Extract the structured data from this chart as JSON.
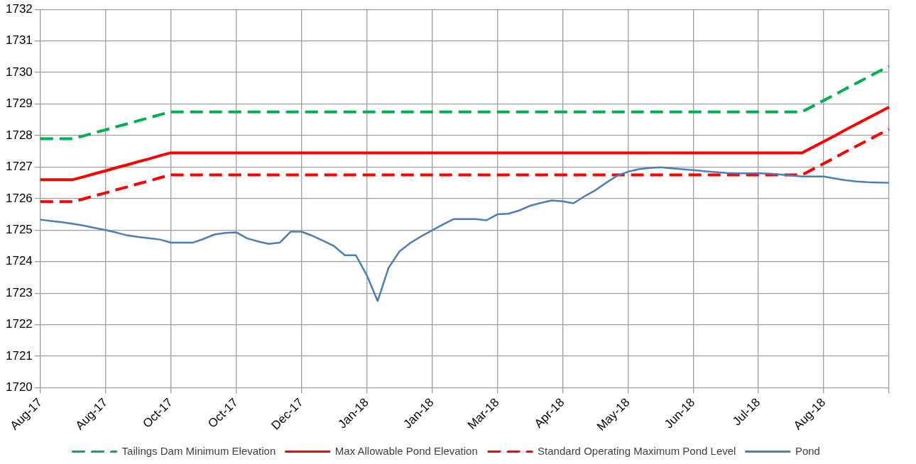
{
  "chart_data": {
    "type": "line",
    "ylim": [
      1720,
      1732
    ],
    "categories": [
      "Aug-17",
      null,
      null,
      null,
      null,
      null,
      "Aug-17",
      null,
      null,
      null,
      null,
      null,
      "Oct-17",
      null,
      null,
      null,
      null,
      null,
      "Oct-17",
      null,
      null,
      null,
      null,
      null,
      "Dec-17",
      null,
      null,
      null,
      null,
      null,
      "Jan-18",
      null,
      null,
      null,
      null,
      null,
      "Jan-18",
      null,
      null,
      null,
      null,
      null,
      "Mar-18",
      null,
      null,
      null,
      null,
      null,
      "Apr-18",
      null,
      null,
      null,
      null,
      null,
      "May-18",
      null,
      null,
      null,
      null,
      null,
      "Jun-18",
      null,
      null,
      null,
      null,
      null,
      "Jul-18",
      null,
      null,
      null,
      null,
      null,
      "Aug-18",
      null,
      null,
      null,
      null,
      null,
      null
    ],
    "yticks": [
      1720,
      1721,
      1722,
      1723,
      1724,
      1725,
      1726,
      1727,
      1728,
      1729,
      1730,
      1731,
      1732
    ],
    "grid": true,
    "legend": "bottom",
    "marker": "none",
    "series": [
      {
        "name": "Tailings Dam Minimum Elevation",
        "color": "#00b050",
        "line_style": "dashed",
        "values": [
          1727.9,
          1727.9,
          1727.9,
          1727.9,
          1727.99,
          1728.09,
          1728.18,
          1728.28,
          1728.37,
          1728.47,
          1728.56,
          1728.66,
          1728.75,
          1728.75,
          1728.75,
          1728.75,
          1728.75,
          1728.75,
          1728.75,
          1728.75,
          1728.75,
          1728.75,
          1728.75,
          1728.75,
          1728.75,
          1728.75,
          1728.75,
          1728.75,
          1728.75,
          1728.75,
          1728.75,
          1728.75,
          1728.75,
          1728.75,
          1728.75,
          1728.75,
          1728.75,
          1728.75,
          1728.75,
          1728.75,
          1728.75,
          1728.75,
          1728.75,
          1728.75,
          1728.75,
          1728.75,
          1728.75,
          1728.75,
          1728.75,
          1728.75,
          1728.75,
          1728.75,
          1728.75,
          1728.75,
          1728.75,
          1728.75,
          1728.75,
          1728.75,
          1728.75,
          1728.75,
          1728.75,
          1728.75,
          1728.75,
          1728.75,
          1728.75,
          1728.75,
          1728.75,
          1728.75,
          1728.75,
          1728.75,
          1728.75,
          1728.93,
          1729.11,
          1729.29,
          1729.48,
          1729.66,
          1729.84,
          1730.02,
          1730.2
        ]
      },
      {
        "name": "Max Allowable Pond Elevation",
        "color": "#ff0000",
        "line_style": "solid",
        "values": [
          1726.6,
          1726.6,
          1726.6,
          1726.6,
          1726.69,
          1726.79,
          1726.88,
          1726.98,
          1727.07,
          1727.17,
          1727.26,
          1727.36,
          1727.45,
          1727.45,
          1727.45,
          1727.45,
          1727.45,
          1727.45,
          1727.45,
          1727.45,
          1727.45,
          1727.45,
          1727.45,
          1727.45,
          1727.45,
          1727.45,
          1727.45,
          1727.45,
          1727.45,
          1727.45,
          1727.45,
          1727.45,
          1727.45,
          1727.45,
          1727.45,
          1727.45,
          1727.45,
          1727.45,
          1727.45,
          1727.45,
          1727.45,
          1727.45,
          1727.45,
          1727.45,
          1727.45,
          1727.45,
          1727.45,
          1727.45,
          1727.45,
          1727.45,
          1727.45,
          1727.45,
          1727.45,
          1727.45,
          1727.45,
          1727.45,
          1727.45,
          1727.45,
          1727.45,
          1727.45,
          1727.45,
          1727.45,
          1727.45,
          1727.45,
          1727.45,
          1727.45,
          1727.45,
          1727.45,
          1727.45,
          1727.45,
          1727.45,
          1727.63,
          1727.81,
          1727.99,
          1728.18,
          1728.36,
          1728.54,
          1728.72,
          1728.9
        ]
      },
      {
        "name": "Standard Operating Maximum Pond Level",
        "color": "#ff0000",
        "line_style": "dashed",
        "values": [
          1725.9,
          1725.9,
          1725.9,
          1725.9,
          1725.99,
          1726.09,
          1726.18,
          1726.28,
          1726.37,
          1726.47,
          1726.56,
          1726.66,
          1726.75,
          1726.75,
          1726.75,
          1726.75,
          1726.75,
          1726.75,
          1726.75,
          1726.75,
          1726.75,
          1726.75,
          1726.75,
          1726.75,
          1726.75,
          1726.75,
          1726.75,
          1726.75,
          1726.75,
          1726.75,
          1726.75,
          1726.75,
          1726.75,
          1726.75,
          1726.75,
          1726.75,
          1726.75,
          1726.75,
          1726.75,
          1726.75,
          1726.75,
          1726.75,
          1726.75,
          1726.75,
          1726.75,
          1726.75,
          1726.75,
          1726.75,
          1726.75,
          1726.75,
          1726.75,
          1726.75,
          1726.75,
          1726.75,
          1726.75,
          1726.75,
          1726.75,
          1726.75,
          1726.75,
          1726.75,
          1726.75,
          1726.75,
          1726.75,
          1726.75,
          1726.75,
          1726.75,
          1726.75,
          1726.75,
          1726.75,
          1726.75,
          1726.75,
          1726.93,
          1727.11,
          1727.29,
          1727.48,
          1727.66,
          1727.84,
          1728.02,
          1728.2
        ]
      },
      {
        "name": "Pond",
        "color": "#4a7ebb",
        "line_style": "solid",
        "values": [
          1725.33,
          1725.29,
          1725.25,
          1725.2,
          1725.14,
          1725.07,
          1725.0,
          1724.92,
          1724.83,
          1724.78,
          1724.74,
          1724.7,
          1724.6,
          1724.6,
          1724.6,
          1724.72,
          1724.86,
          1724.91,
          1724.93,
          1724.74,
          1724.64,
          1724.56,
          1724.6,
          1724.95,
          1724.95,
          1724.82,
          1724.66,
          1724.49,
          1724.2,
          1724.2,
          1723.57,
          1722.75,
          1723.8,
          1724.32,
          1724.59,
          1724.8,
          1724.99,
          1725.18,
          1725.35,
          1725.35,
          1725.35,
          1725.31,
          1725.5,
          1725.52,
          1725.62,
          1725.77,
          1725.86,
          1725.94,
          1725.91,
          1725.85,
          1726.07,
          1726.26,
          1726.5,
          1726.72,
          1726.85,
          1726.93,
          1726.97,
          1726.99,
          1726.96,
          1726.93,
          1726.9,
          1726.87,
          1726.84,
          1726.81,
          1726.8,
          1726.8,
          1726.8,
          1726.79,
          1726.76,
          1726.73,
          1726.7,
          1726.7,
          1726.7,
          1726.64,
          1726.58,
          1726.54,
          1726.52,
          1726.51,
          1726.5
        ]
      }
    ]
  }
}
